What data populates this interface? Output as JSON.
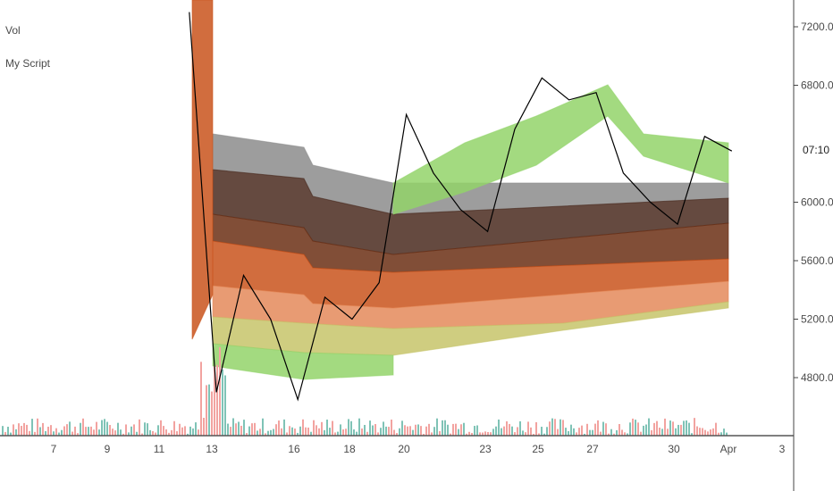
{
  "legend": {
    "vol_label": "Vol",
    "script_label": "My Script"
  },
  "price_tag": {
    "text": "07:10"
  },
  "colors": {
    "band_gray": "#8c8c8c",
    "band_dark_brown": "#4a2a1e",
    "band_brown": "#6b2f14",
    "band_orange": "#c9541c",
    "band_light_orange": "#e48a5a",
    "band_yellow_green": "#c7c46a",
    "band_green": "#93d46a",
    "price_line": "#000000",
    "volume_up": "#7fc3b6",
    "volume_down": "#f2a3a0"
  },
  "chart_data": {
    "type": "line",
    "title": "",
    "xlabel": "",
    "ylabel": "",
    "x_tick_labels": [
      "7",
      "9",
      "11",
      "13",
      "16",
      "18",
      "20",
      "23",
      "25",
      "27",
      "30",
      "Apr",
      "3"
    ],
    "y_tick_labels": [
      "7200.00",
      "6800.00",
      "6000.00",
      "5600.00",
      "5200.00",
      "4800.00"
    ],
    "ylim": [
      4500,
      7350
    ],
    "grid": false,
    "series": [
      {
        "kind": "price",
        "x": [
          "2020-03-12",
          "2020-03-13",
          "2020-03-14",
          "2020-03-15",
          "2020-03-16",
          "2020-03-17",
          "2020-03-18",
          "2020-03-19",
          "2020-03-20",
          "2020-03-21",
          "2020-03-22",
          "2020-03-23",
          "2020-03-24",
          "2020-03-25",
          "2020-03-26",
          "2020-03-27",
          "2020-03-28",
          "2020-03-29",
          "2020-03-30",
          "2020-03-31",
          "2020-04-01"
        ],
        "y": [
          7300,
          4700,
          5500,
          5200,
          4650,
          5350,
          5200,
          5450,
          6600,
          6200,
          5950,
          5800,
          6500,
          6850,
          6700,
          6750,
          6200,
          6000,
          5850,
          6450,
          6350
        ]
      }
    ],
    "bands_note": "none"
  }
}
